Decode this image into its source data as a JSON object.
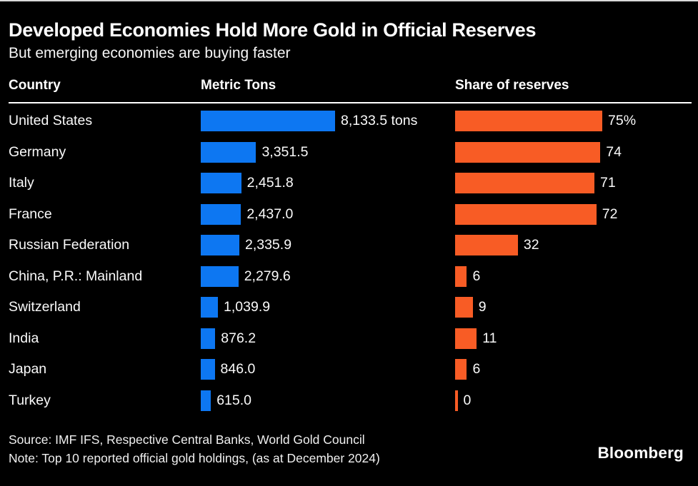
{
  "header": {
    "title": "Developed Economies Hold More Gold in Official Reserves",
    "subtitle": "But emerging economies are buying faster"
  },
  "columns": {
    "country": "Country",
    "tons": "Metric Tons",
    "share": "Share of reserves"
  },
  "chart_data": {
    "type": "bar",
    "orientation": "horizontal",
    "grid": false,
    "legend_position": "none",
    "categories": [
      "United States",
      "Germany",
      "Italy",
      "France",
      "Russian Federation",
      "China, P.R.: Mainland",
      "Switzerland",
      "India",
      "Japan",
      "Turkey"
    ],
    "series": [
      {
        "name": "Metric Tons",
        "color": "#0d77f2",
        "max": 8133.5,
        "values": [
          8133.5,
          3351.5,
          2451.8,
          2437.0,
          2335.9,
          2279.6,
          1039.9,
          876.2,
          846.0,
          615.0
        ],
        "labels": [
          "8,133.5 tons",
          "3,351.5",
          "2,451.8",
          "2,437.0",
          "2,335.9",
          "2,279.6",
          "1,039.9",
          "876.2",
          "846.0",
          "615.0"
        ]
      },
      {
        "name": "Share of reserves",
        "color": "#f85c25",
        "max": 75,
        "values": [
          75,
          74,
          71,
          72,
          32,
          6,
          9,
          11,
          6,
          0
        ],
        "labels": [
          "75%",
          "74",
          "71",
          "72",
          "32",
          "6",
          "9",
          "11",
          "6",
          "0"
        ]
      }
    ]
  },
  "footer": {
    "source": "Source: IMF IFS, Respective Central Banks, World Gold Council",
    "note": "Note: Top 10 reported official gold holdings, (as at December 2024)",
    "brand": "Bloomberg"
  },
  "colors": {
    "background": "#000000",
    "text": "#ffffff",
    "bar_blue": "#0d77f2",
    "bar_orange": "#f85c25"
  }
}
